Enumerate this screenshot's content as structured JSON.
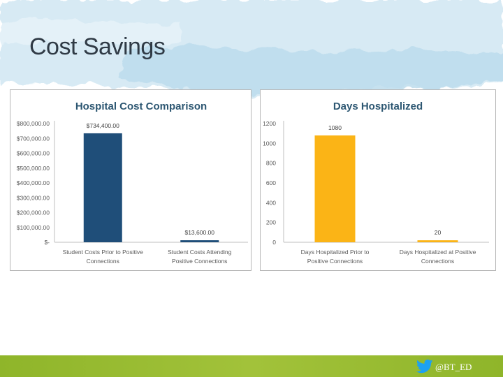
{
  "slide": {
    "title": "Cost Savings"
  },
  "footer": {
    "handle": "@BT_ED",
    "icon": "twitter-bird-icon"
  },
  "colors": {
    "cost_bar": "#1f4e79",
    "days_bar": "#fbb416",
    "footer": "#9cbd33",
    "banner": "#cfe6f2"
  },
  "chart_data": [
    {
      "type": "bar",
      "title": "Hospital Cost Comparison",
      "categories": [
        "Student Costs Prior to Positive Connections",
        "Student Costs Attending Positive Connections"
      ],
      "values": [
        734400,
        13600
      ],
      "data_labels": [
        "$734,400.00",
        "$13,600.00"
      ],
      "y_ticks": [
        0,
        100000,
        200000,
        300000,
        400000,
        500000,
        600000,
        700000,
        800000
      ],
      "y_tick_labels": [
        "$-",
        "$100,000.00",
        "$200,000.00",
        "$300,000.00",
        "$400,000.00",
        "$500,000.00",
        "$600,000.00",
        "$700,000.00",
        "$800,000.00"
      ],
      "ylim": [
        0,
        800000
      ],
      "grid": false,
      "color": "#1f4e79"
    },
    {
      "type": "bar",
      "title": "Days Hospitalized",
      "categories": [
        "Days Hospitalized Prior to Positive Connections",
        "Days Hospitalized at Positive Connections"
      ],
      "values": [
        1080,
        20
      ],
      "data_labels": [
        "1080",
        "20"
      ],
      "y_ticks": [
        0,
        200,
        400,
        600,
        800,
        1000,
        1200
      ],
      "y_tick_labels": [
        "0",
        "200",
        "400",
        "600",
        "800",
        "1000",
        "1200"
      ],
      "ylim": [
        0,
        1200
      ],
      "grid": false,
      "color": "#fbb416"
    }
  ]
}
